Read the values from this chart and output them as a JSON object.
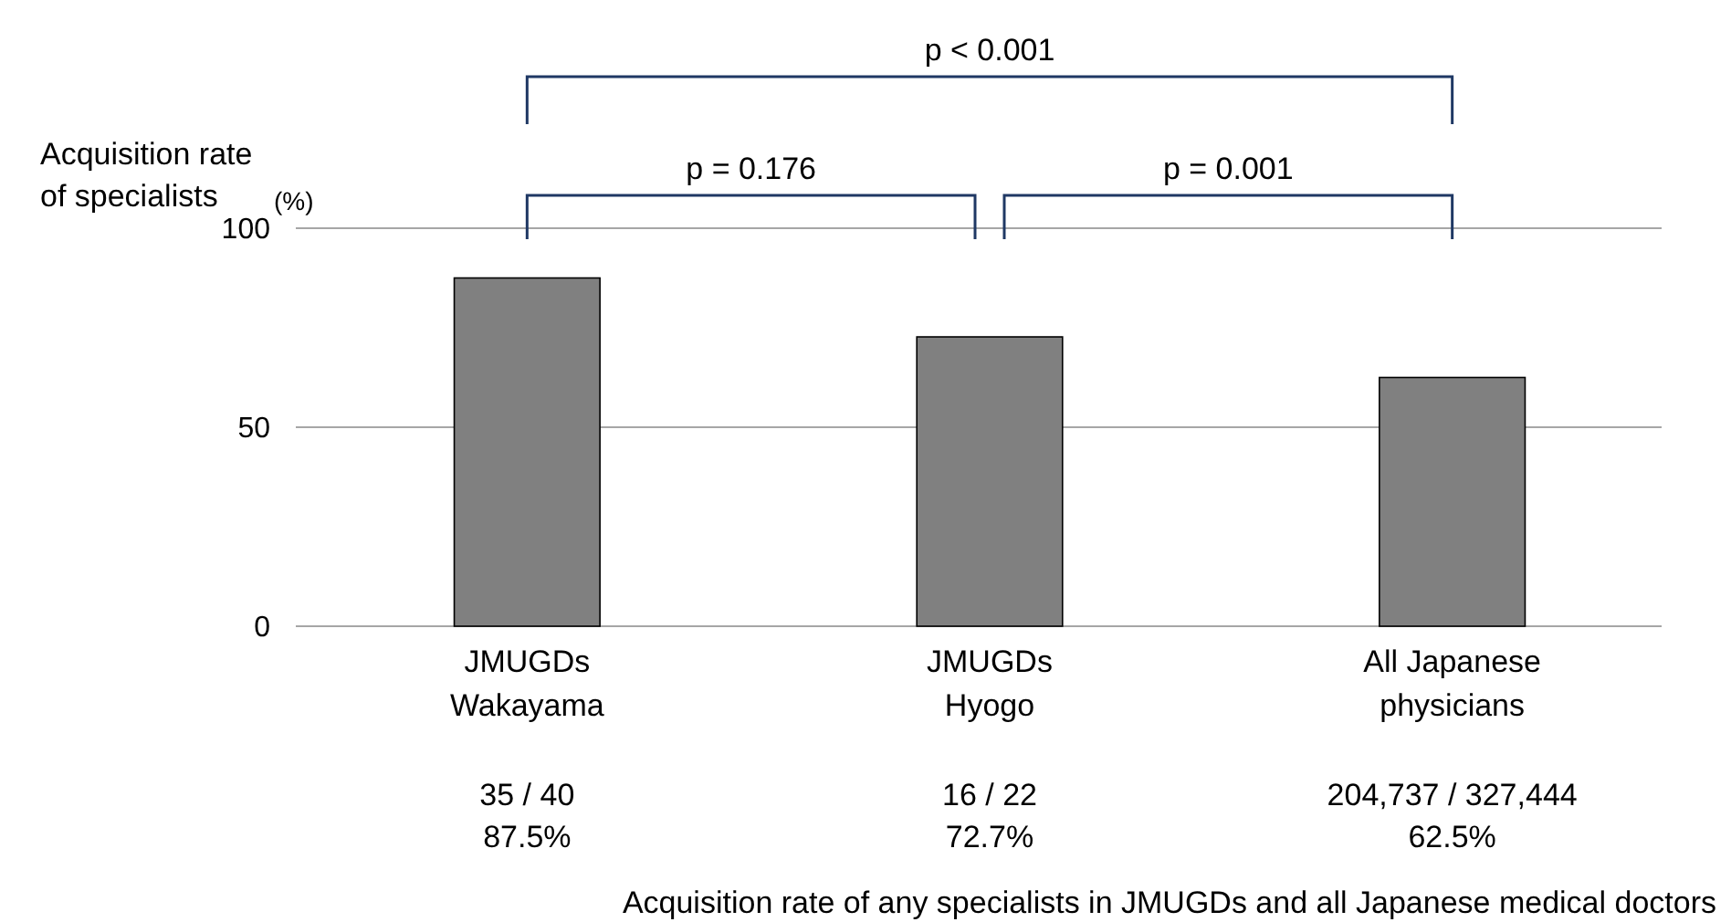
{
  "chart_data": {
    "type": "bar",
    "ylabel": "Acquisition rate\nof specialists",
    "categories": [
      "JMUGDs\nWakayama",
      "JMUGDs\nHyogo",
      "All Japanese\nphysicians"
    ],
    "values": [
      87.5,
      72.7,
      62.5
    ],
    "color": "#808080",
    "value_labels": [
      "87.5%",
      "72.7%",
      "62.5%"
    ],
    "ylim": [
      0,
      100
    ],
    "yticks": [
      0,
      50,
      100
    ],
    "grid": "y",
    "annotations": [
      "35 / 40",
      "16 / 22",
      "204,737 / 327,444",
      "p < 0.001",
      "p = 0.176",
      "p = 0.001",
      "(%)",
      "Acquisition rate of any specialists in JMUGDs and all Japanese medical doctors"
    ]
  }
}
